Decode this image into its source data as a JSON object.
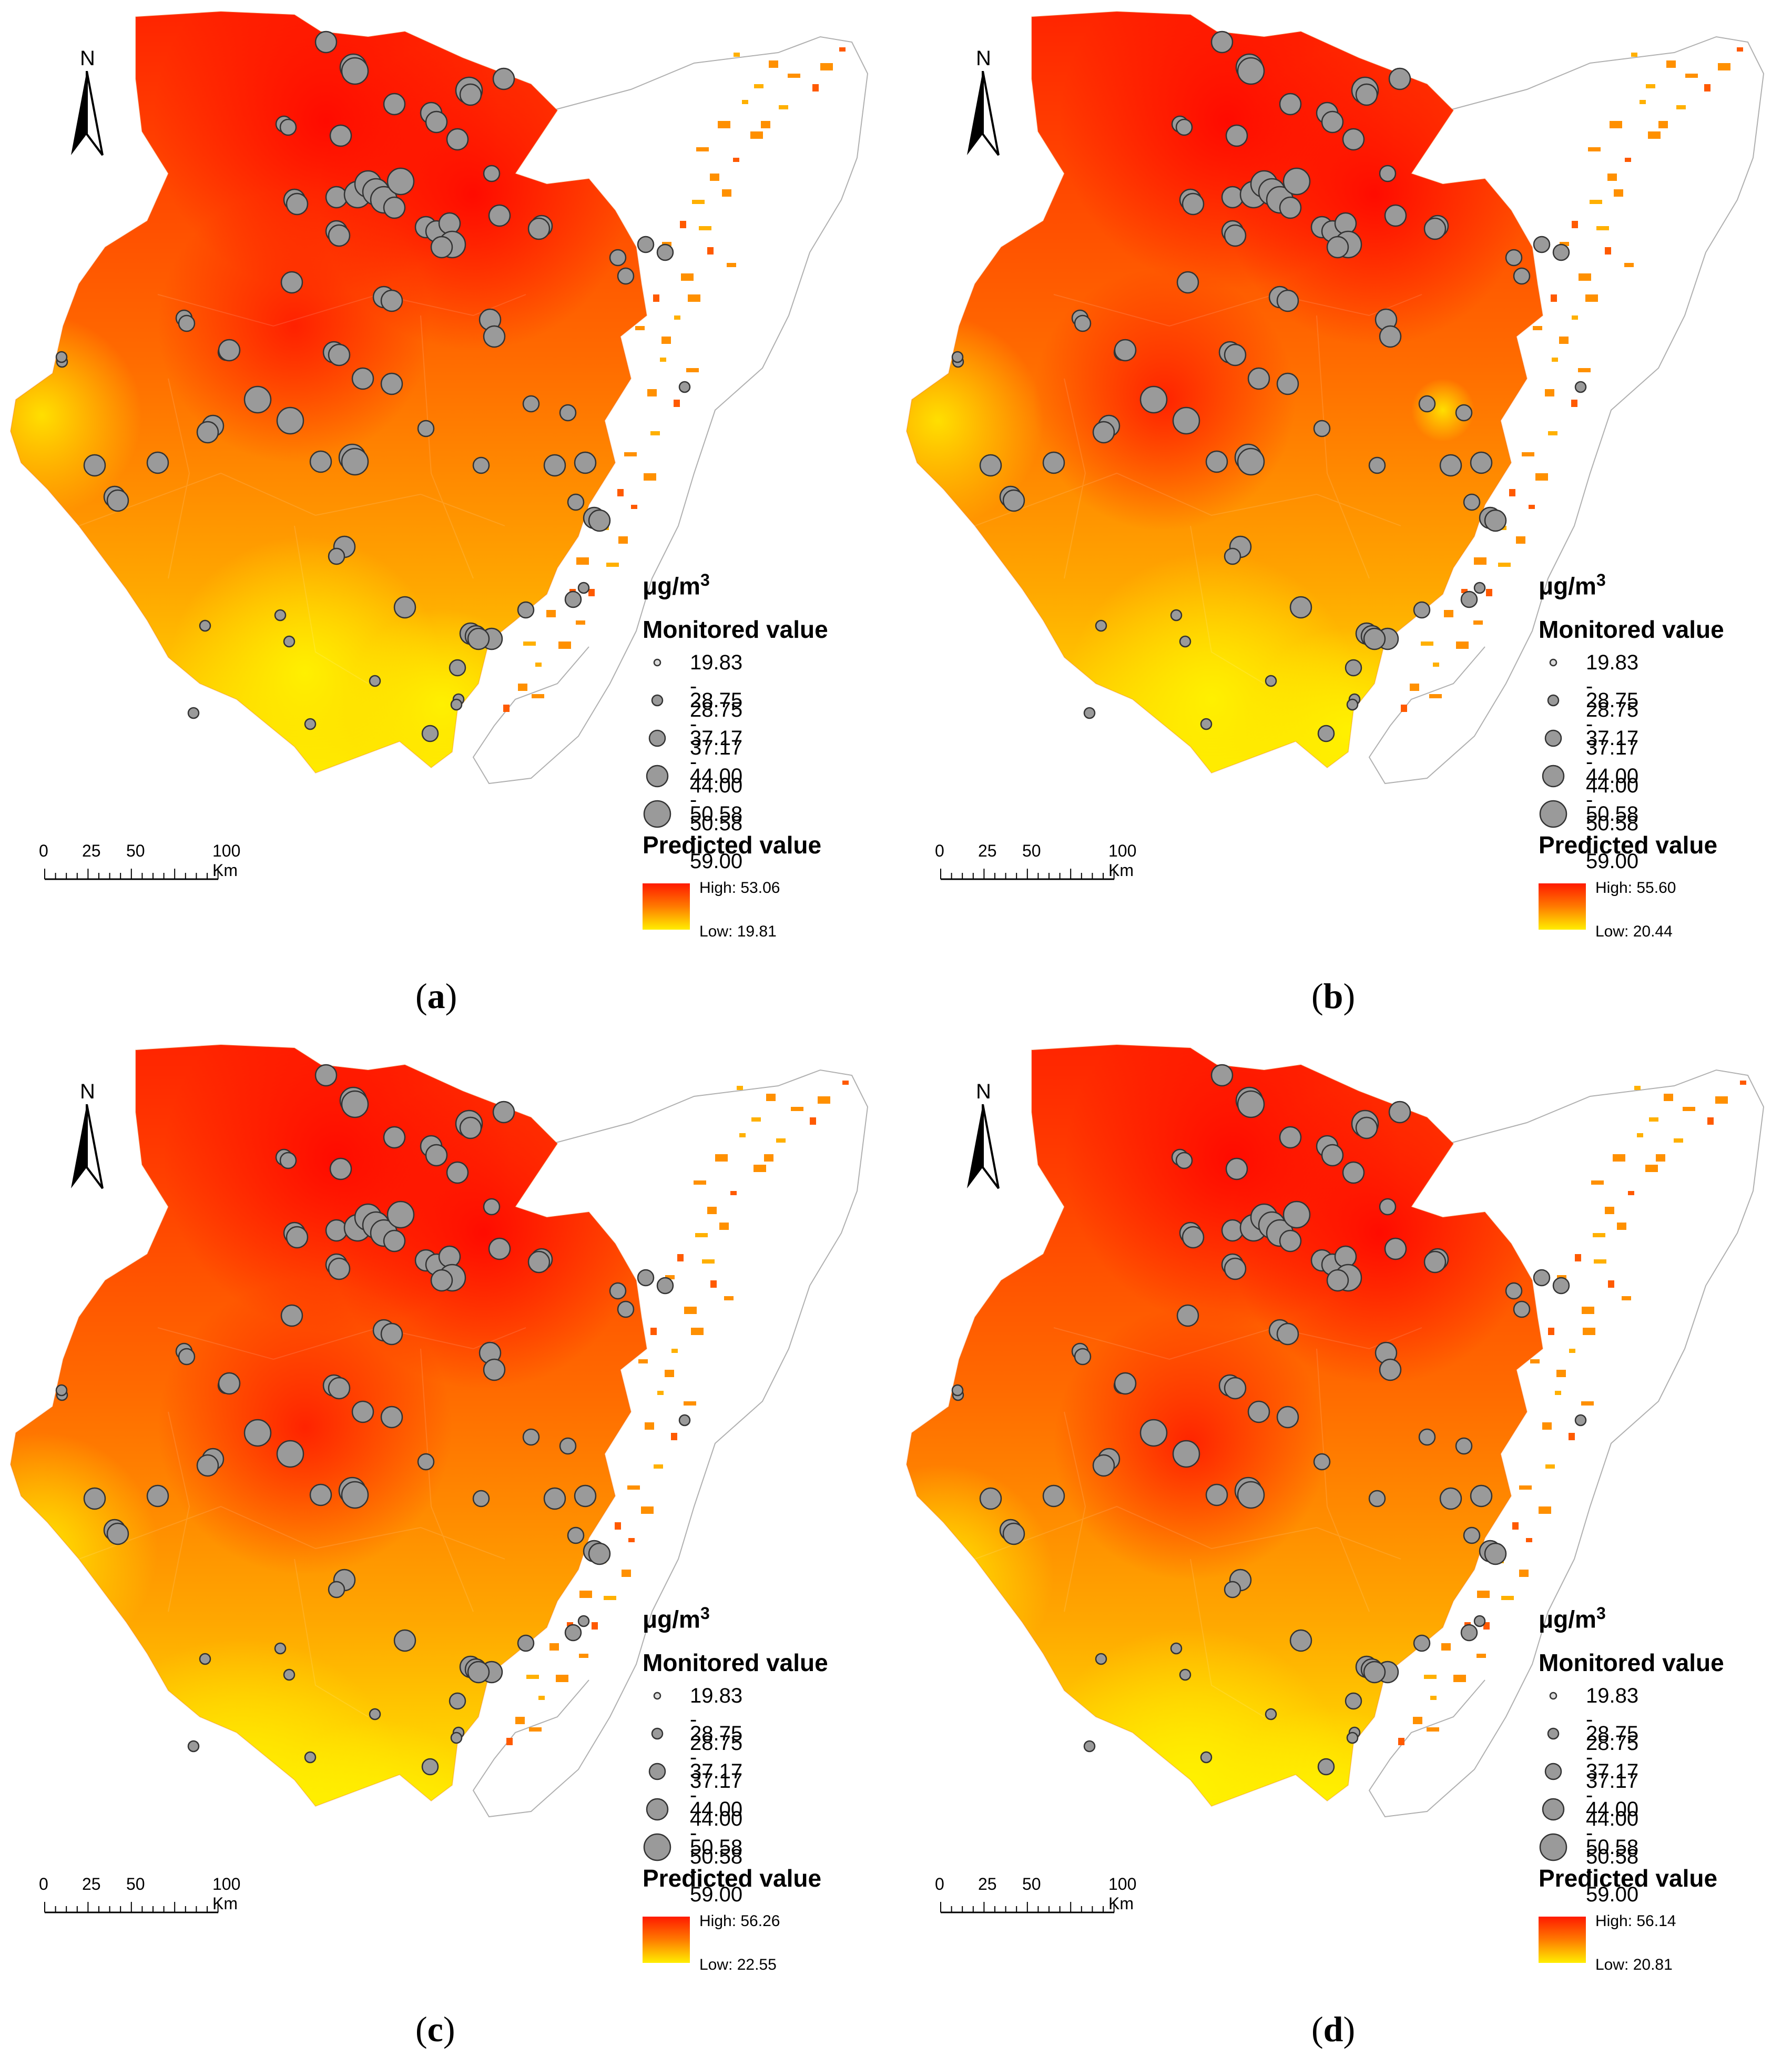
{
  "north_label": "N",
  "unit_label": "μg/m",
  "unit_superscript": "3",
  "monitored_title": "Monitored value",
  "monitored_classes": [
    "19.83 - 28.75",
    "28.75 - 37.17",
    "37.17 - 44.00",
    "44.00 - 50.58",
    "50.58 - 59.00"
  ],
  "predicted_title": "Predicted value",
  "scale_ticks": [
    "0",
    "25",
    "50",
    "100 Km"
  ],
  "colors": {
    "high": "#ff1a00",
    "mid": "#ff7a00",
    "low": "#ffee00",
    "station_fill": "#9a9a9a",
    "station_stroke": "#333333",
    "boundary": "#b0b0b0"
  },
  "panels": [
    {
      "id": "a",
      "caption_open": "(",
      "caption_letter": "a",
      "caption_close": ")",
      "high_label": "High: 53.06",
      "low_label": "Low: 19.81"
    },
    {
      "id": "b",
      "caption_open": "(",
      "caption_letter": "b",
      "caption_close": ")",
      "high_label": "High: 55.60",
      "low_label": "Low: 20.44"
    },
    {
      "id": "c",
      "caption_open": "(",
      "caption_letter": "c",
      "caption_close": ")",
      "high_label": "High: 56.26",
      "low_label": "Low: 22.55"
    },
    {
      "id": "d",
      "caption_open": "(",
      "caption_letter": "d",
      "caption_close": ")",
      "high_label": "High: 56.14",
      "low_label": "Low: 20.81"
    }
  ]
}
